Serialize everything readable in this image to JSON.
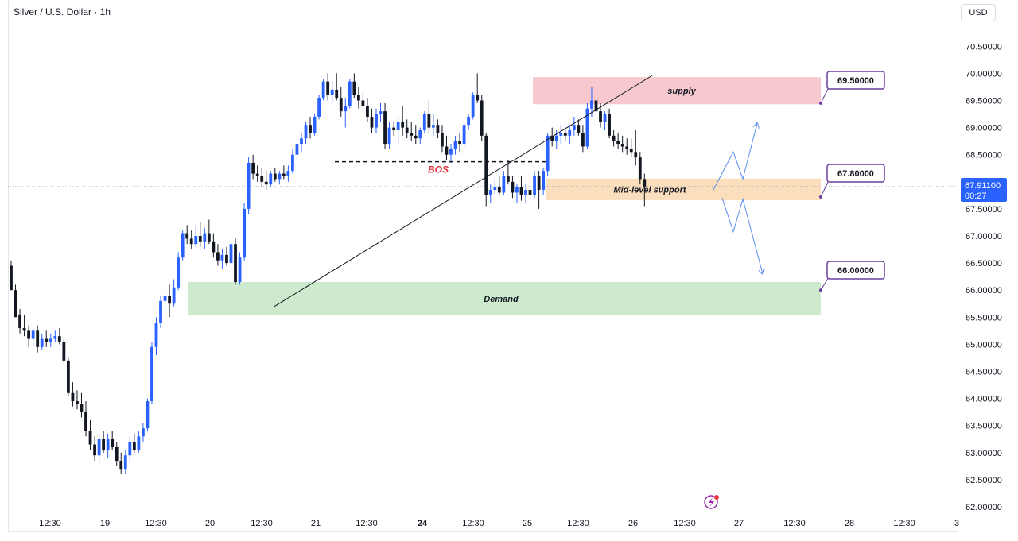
{
  "header": {
    "symbol": "Silver / U.S. Dollar · 1h",
    "currency": "USD"
  },
  "price_tag": {
    "price": "67.91100",
    "countdown": "00:27",
    "value": 67.911
  },
  "chart_data": {
    "type": "candlestick",
    "y_ticks": [
      "70.50000",
      "70.00000",
      "69.50000",
      "69.00000",
      "68.50000",
      "68.00000",
      "67.50000",
      "67.00000",
      "66.50000",
      "66.00000",
      "65.50000",
      "65.00000",
      "64.50000",
      "64.00000",
      "63.50000",
      "63.00000",
      "62.50000",
      "62.00000"
    ],
    "ylim": [
      62.0,
      70.5
    ],
    "x_ticks": [
      "12:30",
      "19",
      "12:30",
      "20",
      "12:30",
      "21",
      "12:30",
      "24",
      "12:30",
      "25",
      "12:30",
      "26",
      "12:30",
      "27",
      "12:30",
      "28",
      "12:30",
      "3"
    ],
    "bold_x_ticks": [
      "24"
    ],
    "colors": {
      "up": "#2962ff",
      "down": "#131722",
      "supply": "#f7c9cf",
      "support": "#fbdfbd",
      "demand": "#cdeacf",
      "annotation": "#6a3ea1",
      "bos": "#e8343f",
      "projection": "#5b8def",
      "price_tag": "#2962ff"
    },
    "zones": [
      {
        "label": "supply",
        "low": 69.43,
        "high": 69.93
      },
      {
        "label": "Mid-level support",
        "low": 67.66,
        "high": 68.06
      },
      {
        "label": "Demand",
        "low": 65.54,
        "high": 66.15
      }
    ],
    "bos": {
      "label": "BOS",
      "price": 68.37
    },
    "levels": [
      "69.50000",
      "67.80000",
      "66.00000"
    ],
    "candles": [
      [
        66.45,
        66.55,
        66.0,
        66.0
      ],
      [
        66.0,
        66.1,
        65.55,
        65.5
      ],
      [
        65.55,
        65.65,
        65.2,
        65.3
      ],
      [
        65.3,
        65.55,
        65.15,
        65.25
      ],
      [
        65.25,
        65.35,
        64.95,
        65.1
      ],
      [
        65.1,
        65.3,
        64.95,
        65.25
      ],
      [
        65.25,
        65.35,
        64.85,
        64.95
      ],
      [
        64.95,
        65.2,
        64.9,
        65.1
      ],
      [
        65.1,
        65.25,
        64.95,
        65.05
      ],
      [
        65.05,
        65.2,
        64.95,
        65.1
      ],
      [
        65.1,
        65.25,
        65.05,
        65.15
      ],
      [
        65.15,
        65.3,
        65.0,
        65.05
      ],
      [
        65.05,
        65.1,
        64.65,
        64.7
      ],
      [
        64.7,
        64.75,
        64.05,
        64.1
      ],
      [
        64.1,
        64.3,
        63.85,
        63.95
      ],
      [
        63.95,
        64.15,
        63.8,
        63.9
      ],
      [
        63.9,
        64.1,
        63.65,
        63.75
      ],
      [
        63.75,
        63.95,
        63.3,
        63.4
      ],
      [
        63.4,
        63.6,
        63.05,
        63.15
      ],
      [
        63.15,
        63.3,
        62.85,
        62.95
      ],
      [
        62.95,
        63.35,
        62.8,
        63.25
      ],
      [
        63.25,
        63.4,
        63.0,
        63.05
      ],
      [
        63.05,
        63.35,
        62.9,
        63.25
      ],
      [
        63.25,
        63.4,
        63.05,
        63.1
      ],
      [
        63.1,
        63.2,
        62.75,
        62.85
      ],
      [
        62.85,
        63.0,
        62.6,
        62.7
      ],
      [
        62.7,
        63.05,
        62.6,
        62.95
      ],
      [
        62.95,
        63.3,
        62.85,
        63.2
      ],
      [
        63.2,
        63.35,
        63.0,
        63.05
      ],
      [
        63.05,
        63.4,
        63.0,
        63.3
      ],
      [
        63.3,
        63.55,
        63.2,
        63.45
      ],
      [
        63.45,
        64.0,
        63.4,
        63.95
      ],
      [
        63.95,
        65.05,
        63.9,
        64.95
      ],
      [
        64.95,
        65.5,
        64.8,
        65.4
      ],
      [
        65.4,
        65.9,
        65.3,
        65.8
      ],
      [
        65.8,
        66.0,
        65.6,
        65.9
      ],
      [
        65.9,
        66.1,
        65.5,
        65.75
      ],
      [
        65.75,
        66.2,
        65.7,
        66.05
      ],
      [
        66.05,
        66.7,
        66.0,
        66.6
      ],
      [
        66.6,
        67.1,
        66.55,
        67.05
      ],
      [
        67.05,
        67.2,
        66.85,
        66.95
      ],
      [
        66.95,
        67.1,
        66.75,
        66.85
      ],
      [
        66.85,
        67.2,
        66.8,
        67.0
      ],
      [
        67.0,
        67.25,
        66.8,
        66.9
      ],
      [
        66.9,
        67.15,
        66.75,
        67.05
      ],
      [
        67.05,
        67.3,
        66.85,
        66.9
      ],
      [
        66.9,
        67.05,
        66.6,
        66.7
      ],
      [
        66.7,
        66.85,
        66.45,
        66.55
      ],
      [
        66.55,
        66.75,
        66.4,
        66.65
      ],
      [
        66.65,
        66.8,
        66.45,
        66.5
      ],
      [
        66.5,
        66.9,
        66.45,
        66.85
      ],
      [
        66.85,
        66.95,
        66.1,
        66.15
      ],
      [
        66.15,
        66.7,
        66.1,
        66.6
      ],
      [
        66.6,
        67.6,
        66.55,
        67.5
      ],
      [
        67.5,
        68.45,
        67.4,
        68.35
      ],
      [
        68.35,
        68.5,
        68.05,
        68.15
      ],
      [
        68.15,
        68.3,
        68.0,
        68.1
      ],
      [
        68.1,
        68.25,
        67.9,
        68.0
      ],
      [
        68.0,
        68.2,
        67.85,
        67.95
      ],
      [
        67.95,
        68.2,
        67.9,
        68.15
      ],
      [
        68.15,
        68.25,
        68.0,
        68.05
      ],
      [
        68.05,
        68.2,
        67.95,
        68.15
      ],
      [
        68.15,
        68.3,
        68.05,
        68.1
      ],
      [
        68.1,
        68.3,
        68.0,
        68.2
      ],
      [
        68.2,
        68.6,
        68.15,
        68.5
      ],
      [
        68.5,
        68.75,
        68.4,
        68.7
      ],
      [
        68.7,
        68.9,
        68.55,
        68.8
      ],
      [
        68.8,
        69.1,
        68.7,
        69.05
      ],
      [
        69.05,
        69.2,
        68.8,
        68.9
      ],
      [
        68.9,
        69.25,
        68.85,
        69.2
      ],
      [
        69.2,
        69.6,
        69.15,
        69.55
      ],
      [
        69.55,
        69.9,
        69.5,
        69.85
      ],
      [
        69.85,
        70.0,
        69.5,
        69.6
      ],
      [
        69.6,
        69.85,
        69.45,
        69.7
      ],
      [
        69.7,
        70.0,
        69.5,
        69.55
      ],
      [
        69.55,
        69.75,
        69.2,
        69.3
      ],
      [
        69.3,
        69.55,
        69.0,
        69.4
      ],
      [
        69.4,
        69.9,
        69.35,
        69.85
      ],
      [
        69.85,
        70.0,
        69.55,
        69.6
      ],
      [
        69.6,
        69.75,
        69.35,
        69.5
      ],
      [
        69.5,
        69.65,
        69.3,
        69.4
      ],
      [
        69.4,
        69.55,
        69.1,
        69.2
      ],
      [
        69.2,
        69.35,
        68.9,
        69.0
      ],
      [
        69.0,
        69.35,
        68.9,
        69.25
      ],
      [
        69.25,
        69.45,
        69.1,
        69.3
      ],
      [
        69.3,
        69.45,
        68.6,
        68.7
      ],
      [
        68.7,
        69.1,
        68.6,
        69.0
      ],
      [
        69.0,
        69.1,
        68.85,
        68.95
      ],
      [
        68.95,
        69.2,
        68.7,
        69.1
      ],
      [
        69.1,
        69.4,
        68.85,
        69.0
      ],
      [
        69.0,
        69.15,
        68.8,
        68.9
      ],
      [
        68.9,
        69.1,
        68.75,
        68.85
      ],
      [
        68.85,
        69.05,
        68.7,
        68.8
      ],
      [
        68.8,
        69.0,
        68.7,
        68.95
      ],
      [
        68.95,
        69.3,
        68.9,
        69.25
      ],
      [
        69.25,
        69.5,
        68.9,
        69.0
      ],
      [
        69.0,
        69.25,
        68.85,
        69.05
      ],
      [
        69.05,
        69.15,
        68.8,
        68.9
      ],
      [
        68.9,
        69.05,
        68.55,
        68.65
      ],
      [
        68.65,
        68.85,
        68.4,
        68.5
      ],
      [
        68.5,
        68.7,
        68.35,
        68.6
      ],
      [
        68.6,
        68.85,
        68.5,
        68.75
      ],
      [
        68.75,
        68.9,
        68.55,
        68.7
      ],
      [
        68.7,
        69.1,
        68.65,
        69.05
      ],
      [
        69.05,
        69.25,
        68.95,
        69.2
      ],
      [
        69.2,
        69.65,
        69.15,
        69.6
      ],
      [
        69.6,
        70.0,
        69.45,
        69.5
      ],
      [
        69.5,
        69.6,
        68.75,
        68.85
      ],
      [
        68.85,
        68.9,
        67.55,
        67.75
      ],
      [
        67.75,
        67.95,
        67.6,
        67.85
      ],
      [
        67.85,
        68.05,
        67.75,
        67.9
      ],
      [
        67.9,
        68.1,
        67.75,
        67.8
      ],
      [
        67.8,
        68.2,
        67.75,
        68.1
      ],
      [
        68.1,
        68.4,
        67.95,
        68.0
      ],
      [
        68.0,
        68.1,
        67.7,
        67.8
      ],
      [
        67.8,
        67.95,
        67.6,
        67.9
      ],
      [
        67.9,
        68.1,
        67.65,
        67.75
      ],
      [
        67.75,
        67.95,
        67.6,
        67.85
      ],
      [
        67.85,
        68.05,
        67.65,
        67.75
      ],
      [
        67.75,
        68.2,
        67.7,
        68.1
      ],
      [
        68.1,
        68.2,
        67.5,
        67.85
      ],
      [
        67.85,
        68.25,
        67.75,
        68.2
      ],
      [
        68.2,
        68.9,
        68.1,
        68.85
      ],
      [
        68.85,
        69.0,
        68.65,
        68.75
      ],
      [
        68.75,
        68.95,
        68.6,
        68.85
      ],
      [
        68.85,
        69.05,
        68.7,
        68.9
      ],
      [
        68.9,
        69.0,
        68.75,
        68.85
      ],
      [
        68.85,
        69.05,
        68.7,
        68.95
      ],
      [
        68.95,
        69.2,
        68.85,
        69.05
      ],
      [
        69.05,
        69.15,
        68.85,
        68.9
      ],
      [
        68.9,
        69.05,
        68.55,
        68.65
      ],
      [
        68.65,
        69.45,
        68.6,
        69.35
      ],
      [
        69.35,
        69.75,
        69.2,
        69.5
      ],
      [
        69.5,
        69.6,
        69.2,
        69.3
      ],
      [
        69.3,
        69.45,
        69.0,
        69.1
      ],
      [
        69.1,
        69.3,
        68.95,
        69.25
      ],
      [
        69.25,
        69.35,
        68.8,
        68.85
      ],
      [
        68.85,
        68.95,
        68.65,
        68.75
      ],
      [
        68.75,
        68.9,
        68.6,
        68.7
      ],
      [
        68.7,
        68.85,
        68.55,
        68.65
      ],
      [
        68.65,
        68.8,
        68.5,
        68.6
      ],
      [
        68.6,
        68.8,
        68.45,
        68.55
      ],
      [
        68.55,
        68.95,
        68.3,
        68.45
      ],
      [
        68.45,
        68.55,
        67.95,
        68.05
      ],
      [
        68.05,
        68.15,
        67.55,
        67.91
      ]
    ]
  }
}
